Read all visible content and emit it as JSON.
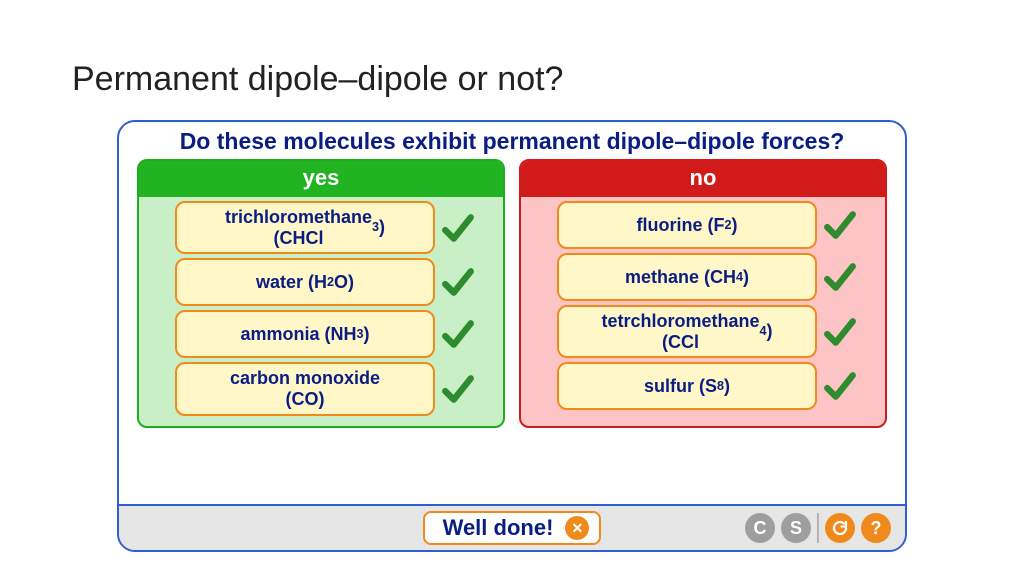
{
  "page_title": "Permanent dipole–dipole or not?",
  "question": "Do these molecules exhibit permanent dipole–dipole forces?",
  "columns": {
    "yes": {
      "header": "yes",
      "header_bg": "#21b321",
      "panel_bg": "#c8efc5",
      "panel_border": "#1cae1c",
      "items": [
        {
          "label_html": "trichloromethane<br>(CHCl<sub>3</sub>)",
          "correct": true
        },
        {
          "label_html": "water (H<sub>2</sub>O)",
          "correct": true
        },
        {
          "label_html": "ammonia (NH<sub>3</sub>)",
          "correct": true
        },
        {
          "label_html": "carbon monoxide<br>(CO)",
          "correct": true
        }
      ]
    },
    "no": {
      "header": "no",
      "header_bg": "#d11a1a",
      "panel_bg": "#fcc4c4",
      "panel_border": "#d11a1a",
      "items": [
        {
          "label_html": "fluorine (F<sub>2</sub>)",
          "correct": true
        },
        {
          "label_html": "methane (CH<sub>4</sub>)",
          "correct": true
        },
        {
          "label_html": "tetrchloromethane<br>(CCl<sub>4</sub>)",
          "correct": true
        },
        {
          "label_html": "sulfur (S<sub>8</sub>)",
          "correct": true
        }
      ]
    }
  },
  "feedback": {
    "text": "Well done!"
  },
  "footer_buttons": {
    "c": "C",
    "s": "S",
    "reset": "↻",
    "help": "?"
  },
  "item_style": {
    "bg": "#fff7c8",
    "border": "#f08a1d",
    "text_color": "#0a1d82",
    "fontsize": 18
  },
  "check_color": "#2e8b2e",
  "activity_border": "#2f5fcf"
}
